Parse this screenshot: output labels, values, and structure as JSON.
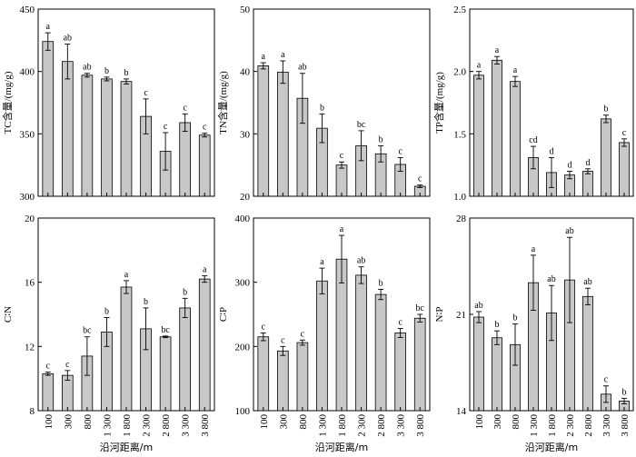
{
  "common_xlabel": "沿河距离/m",
  "chart_data": [
    {
      "type": "bar",
      "ylabel": "TC含量/(mg/g)",
      "ylim": [
        300,
        450
      ],
      "yticks": [
        300,
        350,
        400,
        450
      ],
      "categories": [
        "100",
        "300",
        "800",
        "1 300",
        "1 800",
        "2 300",
        "2 800",
        "3 300",
        "3 800"
      ],
      "values": [
        424,
        408,
        397,
        394,
        392,
        364,
        336,
        359,
        349
      ],
      "errors": [
        7,
        14,
        1.5,
        1.5,
        2,
        14,
        15,
        7,
        1.5
      ],
      "letters": [
        "a",
        "ab",
        "ab",
        "b",
        "b",
        "c",
        "c",
        "c",
        "c"
      ]
    },
    {
      "type": "bar",
      "ylabel": "TN含量/(mg/g)",
      "ylim": [
        20,
        50
      ],
      "yticks": [
        20,
        30,
        40,
        50
      ],
      "categories": [
        "100",
        "300",
        "800",
        "1 300",
        "1 800",
        "2 300",
        "2 800",
        "3 300",
        "3 800"
      ],
      "values": [
        40.9,
        39.9,
        35.7,
        30.9,
        25.0,
        28.1,
        26.8,
        25.1,
        21.6
      ],
      "errors": [
        0.5,
        1.8,
        4.0,
        2.3,
        0.5,
        2.4,
        1.3,
        1.1,
        0.2
      ],
      "letters": [
        "a",
        "a",
        "ab",
        "b",
        "c",
        "bc",
        "b",
        "c",
        "c"
      ]
    },
    {
      "type": "bar",
      "ylabel": "TP含量/(mg/g)",
      "ylim": [
        1.0,
        2.5
      ],
      "yticks": [
        1.0,
        1.5,
        2.0,
        2.5
      ],
      "categories": [
        "100",
        "300",
        "800",
        "1 300",
        "1 800",
        "2 300",
        "2 800",
        "3 300",
        "3 800"
      ],
      "values": [
        1.97,
        2.09,
        1.92,
        1.31,
        1.19,
        1.17,
        1.2,
        1.62,
        1.43
      ],
      "errors": [
        0.03,
        0.03,
        0.04,
        0.09,
        0.12,
        0.03,
        0.02,
        0.03,
        0.03
      ],
      "letters": [
        "a",
        "a",
        "a",
        "cd",
        "d",
        "d",
        "d",
        "b",
        "c"
      ]
    },
    {
      "type": "bar",
      "ylabel": "C∶N",
      "ylim": [
        8,
        20
      ],
      "yticks": [
        8,
        12,
        16,
        20
      ],
      "categories": [
        "100",
        "300",
        "800",
        "1 300",
        "1 800",
        "2 300",
        "2 800",
        "3 300",
        "3 800"
      ],
      "values": [
        10.3,
        10.2,
        11.4,
        12.9,
        15.7,
        13.1,
        12.6,
        14.4,
        16.2
      ],
      "errors": [
        0.1,
        0.3,
        1.2,
        0.9,
        0.4,
        1.3,
        0.05,
        0.6,
        0.2
      ],
      "letters": [
        "c",
        "c",
        "bc",
        "b",
        "a",
        "b",
        "bc",
        "b",
        "a"
      ]
    },
    {
      "type": "bar",
      "ylabel": "C∶P",
      "ylim": [
        100,
        400
      ],
      "yticks": [
        100,
        200,
        300,
        400
      ],
      "categories": [
        "100",
        "300",
        "800",
        "1 300",
        "1 800",
        "2 300",
        "2 800",
        "3 300",
        "3 800"
      ],
      "values": [
        215,
        193,
        206,
        302,
        336,
        311,
        281,
        221,
        244
      ],
      "errors": [
        6,
        7,
        4,
        20,
        37,
        13,
        8,
        7,
        6
      ],
      "letters": [
        "c",
        "c",
        "c",
        "a",
        "a",
        "ab",
        "b",
        "c",
        "bc"
      ]
    },
    {
      "type": "bar",
      "ylabel": "N∶P",
      "ylim": [
        14,
        28
      ],
      "yticks": [
        14,
        21,
        28
      ],
      "categories": [
        "100",
        "300",
        "800",
        "1 300",
        "1 800",
        "2 300",
        "2 800",
        "3 300",
        "3 800"
      ],
      "values": [
        20.8,
        19.3,
        18.8,
        23.3,
        21.1,
        23.5,
        22.3,
        15.2,
        14.7
      ],
      "errors": [
        0.4,
        0.5,
        1.5,
        2.0,
        2.0,
        3.1,
        0.6,
        0.6,
        0.2
      ],
      "letters": [
        "ab",
        "b",
        "b",
        "a",
        "ab",
        "ab",
        "ab",
        "c",
        "b"
      ]
    }
  ]
}
